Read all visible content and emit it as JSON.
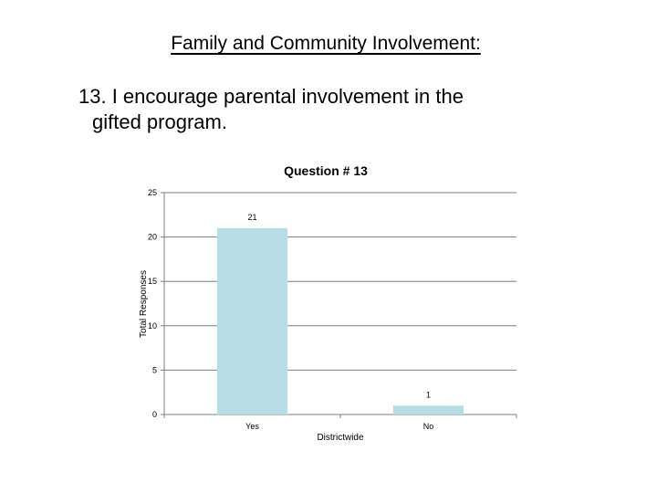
{
  "slide": {
    "title": "Family and Community Involvement:",
    "question_line1": "13.  I encourage parental involvement in the",
    "question_line2": "gifted program."
  },
  "chart_data": {
    "type": "bar",
    "title": "Question # 13",
    "categories": [
      "Yes",
      "No"
    ],
    "values": [
      21,
      1
    ],
    "data_labels": [
      "21",
      "1"
    ],
    "xlabel": "Districtwide",
    "ylabel": "Total Responses",
    "ylim": [
      0,
      25
    ],
    "yticks": [
      0,
      5,
      10,
      15,
      20,
      25
    ],
    "grid": true,
    "legend": "none",
    "bar_color": "#b8dde4"
  }
}
